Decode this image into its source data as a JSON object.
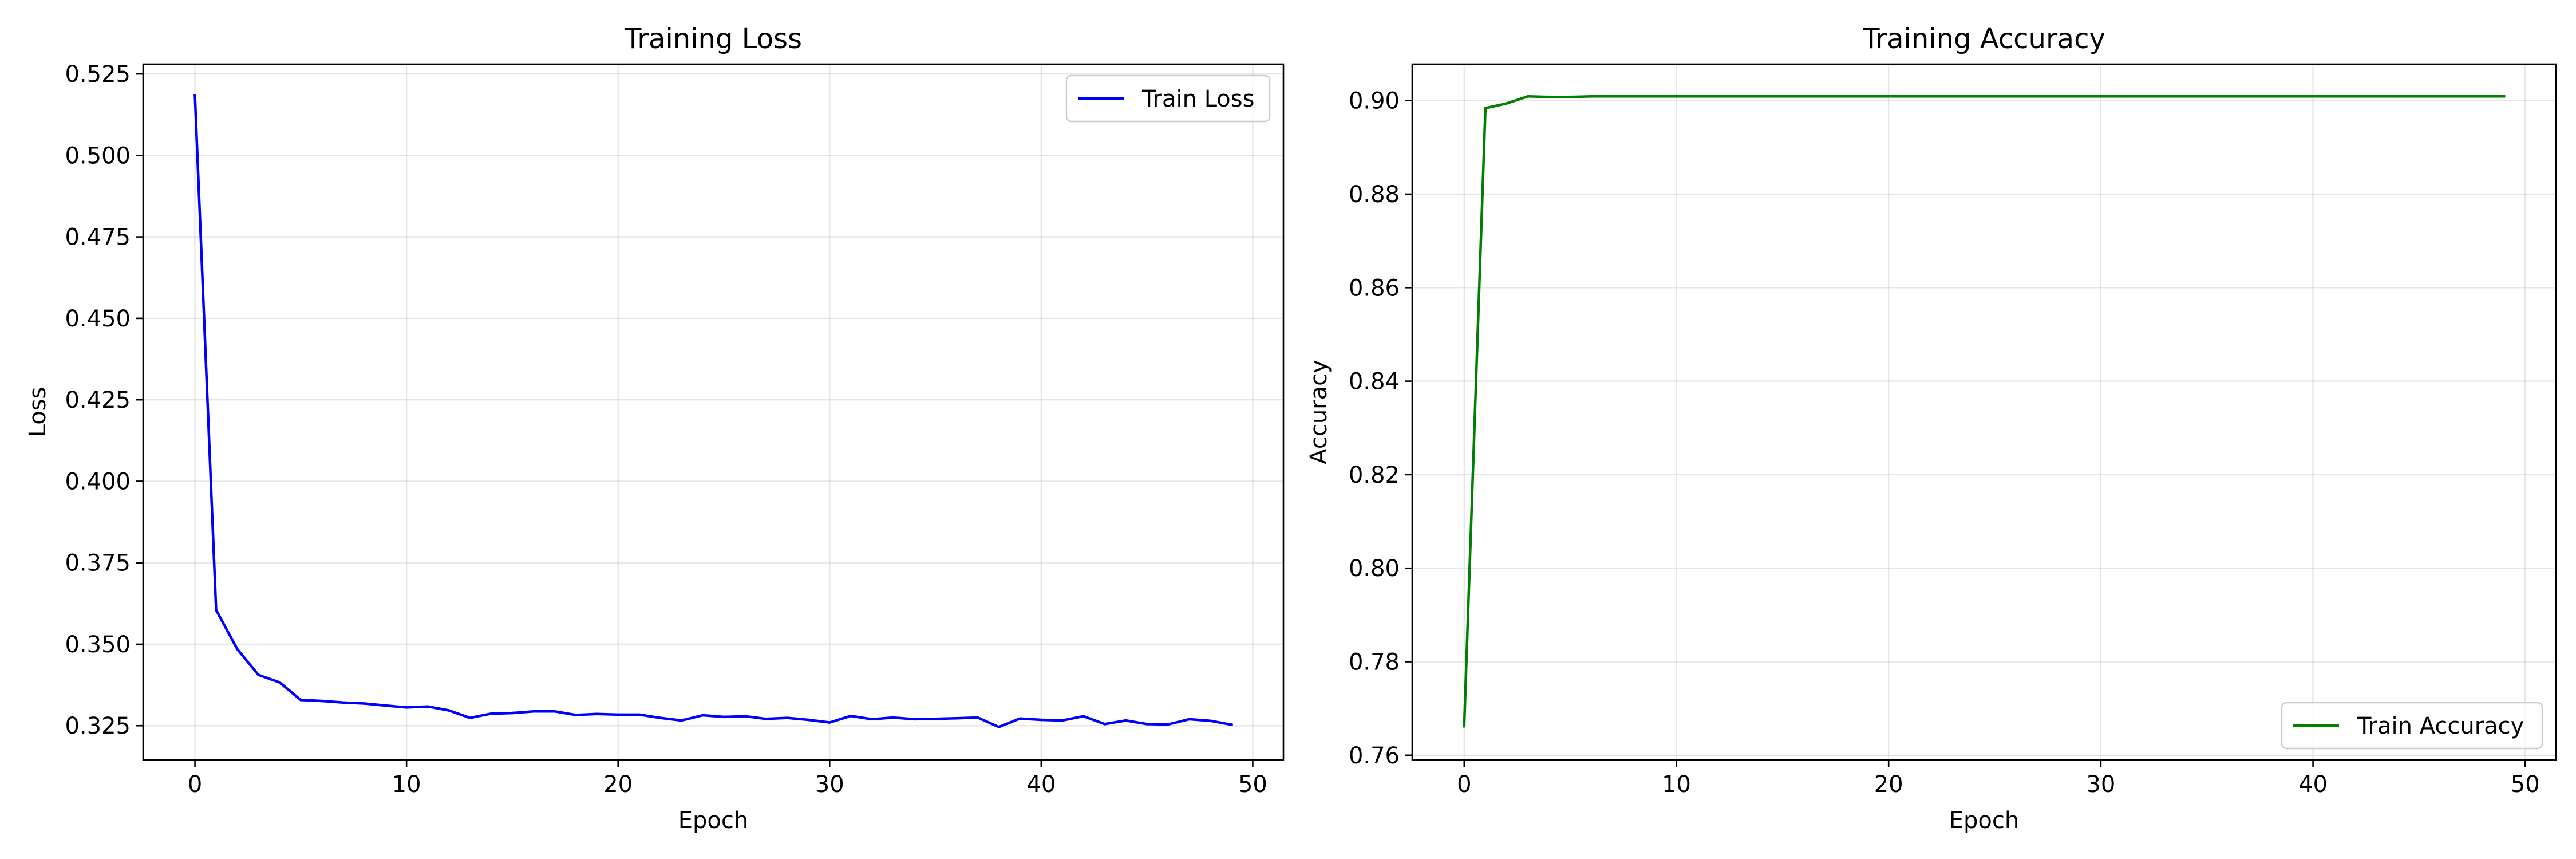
{
  "chart_data": [
    {
      "type": "line",
      "title": "Training Loss",
      "xlabel": "Epoch",
      "ylabel": "Loss",
      "xlim": [
        -2.45,
        51.45
      ],
      "ylim": [
        0.3145,
        0.528
      ],
      "xticks": [
        0,
        10,
        20,
        30,
        40,
        50
      ],
      "yticks": [
        0.325,
        0.35,
        0.375,
        0.4,
        0.425,
        0.45,
        0.475,
        0.5,
        0.525
      ],
      "ytick_labels": [
        "0.325",
        "0.350",
        "0.375",
        "0.400",
        "0.425",
        "0.450",
        "0.475",
        "0.500",
        "0.525"
      ],
      "grid": true,
      "legend_position": "upper right",
      "series": [
        {
          "name": "Train Loss",
          "color": "#0000ff",
          "x": [
            0,
            1,
            2,
            3,
            4,
            5,
            6,
            7,
            8,
            9,
            10,
            11,
            12,
            13,
            14,
            15,
            16,
            17,
            18,
            19,
            20,
            21,
            22,
            23,
            24,
            25,
            26,
            27,
            28,
            29,
            30,
            31,
            32,
            33,
            34,
            35,
            36,
            37,
            38,
            39,
            40,
            41,
            42,
            43,
            44,
            45,
            46,
            47,
            48,
            49
          ],
          "values": [
            0.5184,
            0.3605,
            0.3485,
            0.3406,
            0.3383,
            0.3329,
            0.3326,
            0.3321,
            0.3318,
            0.3312,
            0.3306,
            0.3309,
            0.3297,
            0.3274,
            0.3287,
            0.3289,
            0.3294,
            0.3294,
            0.3283,
            0.3286,
            0.3284,
            0.3284,
            0.3274,
            0.3266,
            0.3282,
            0.3277,
            0.3279,
            0.3271,
            0.3274,
            0.3268,
            0.326,
            0.328,
            0.327,
            0.3275,
            0.327,
            0.3271,
            0.3273,
            0.3275,
            0.3246,
            0.3272,
            0.3268,
            0.3266,
            0.3279,
            0.3255,
            0.3266,
            0.3255,
            0.3254,
            0.327,
            0.3265,
            0.3253
          ]
        }
      ]
    },
    {
      "type": "line",
      "title": "Training Accuracy",
      "xlabel": "Epoch",
      "ylabel": "Accuracy",
      "xlim": [
        -2.45,
        51.45
      ],
      "ylim": [
        0.759,
        0.9078
      ],
      "xticks": [
        0,
        10,
        20,
        30,
        40,
        50
      ],
      "yticks": [
        0.76,
        0.78,
        0.8,
        0.82,
        0.84,
        0.86,
        0.88,
        0.9
      ],
      "ytick_labels": [
        "0.76",
        "0.78",
        "0.80",
        "0.82",
        "0.84",
        "0.86",
        "0.88",
        "0.90"
      ],
      "grid": true,
      "legend_position": "lower right",
      "series": [
        {
          "name": "Train Accuracy",
          "color": "#008000",
          "x": [
            0,
            1,
            2,
            3,
            4,
            5,
            6,
            7,
            8,
            9,
            10,
            11,
            12,
            13,
            14,
            15,
            16,
            17,
            18,
            19,
            20,
            21,
            22,
            23,
            24,
            25,
            26,
            27,
            28,
            29,
            30,
            31,
            32,
            33,
            34,
            35,
            36,
            37,
            38,
            39,
            40,
            41,
            42,
            43,
            44,
            45,
            46,
            47,
            48,
            49
          ],
          "values": [
            0.7662,
            0.8984,
            0.8994,
            0.9009,
            0.9008,
            0.9008,
            0.9009,
            0.9009,
            0.9009,
            0.9009,
            0.9009,
            0.9009,
            0.9009,
            0.9009,
            0.9009,
            0.9009,
            0.9009,
            0.9009,
            0.9009,
            0.9009,
            0.9009,
            0.9009,
            0.9009,
            0.9009,
            0.9009,
            0.9009,
            0.9009,
            0.9009,
            0.9009,
            0.9009,
            0.9009,
            0.9009,
            0.9009,
            0.9009,
            0.9009,
            0.9009,
            0.9009,
            0.9009,
            0.9009,
            0.9009,
            0.9009,
            0.9009,
            0.9009,
            0.9009,
            0.9009,
            0.9009,
            0.9009,
            0.9009,
            0.9009,
            0.9009
          ]
        }
      ]
    }
  ]
}
